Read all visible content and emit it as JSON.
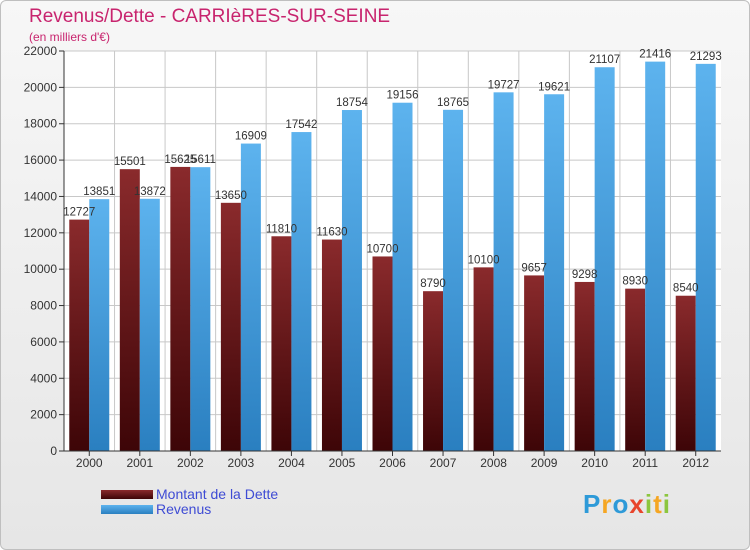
{
  "chart_data": {
    "type": "bar",
    "title": "Revenus/Dette - CARRIèRES-SUR-SEINE",
    "subtitle": "(en milliers d'€)",
    "categories": [
      "2000",
      "2001",
      "2002",
      "2003",
      "2004",
      "2005",
      "2006",
      "2007",
      "2008",
      "2009",
      "2010",
      "2011",
      "2012"
    ],
    "series": [
      {
        "name": "Montant de la Dette",
        "color": "#7a1a1c",
        "values": [
          12727,
          15501,
          15625,
          13650,
          11810,
          11630,
          10700,
          8790,
          10100,
          9657,
          9298,
          8930,
          8540
        ],
        "labels": [
          "12727",
          "15501",
          "15625",
          "13650",
          "11810",
          "11630",
          "10700",
          "8790",
          "10100",
          "9657",
          "9298",
          "8930",
          "8540"
        ]
      },
      {
        "name": "Revenus",
        "color": "#4aa3e2",
        "values": [
          13851,
          13872,
          15611,
          16909,
          17542,
          18754,
          19156,
          18765,
          19727,
          19621,
          21107,
          21416,
          21293
        ],
        "labels": [
          "13851",
          "13872",
          "15611",
          "16909",
          "17542",
          "18754",
          "19156",
          "18765",
          "19727",
          "19621",
          "21107",
          "21416",
          "21293"
        ]
      }
    ],
    "yticks": [
      0,
      2000,
      4000,
      6000,
      8000,
      10000,
      12000,
      14000,
      16000,
      18000,
      20000,
      22000
    ],
    "ylim": [
      0,
      22000
    ],
    "grid": true,
    "xlabel": "",
    "ylabel": "",
    "legend_position": "bottom-left"
  },
  "logo": {
    "letters": [
      "P",
      "r",
      "o",
      "x",
      "i",
      "t",
      "i"
    ],
    "colors": [
      "#2e9ad8",
      "#f5a623",
      "#2e9ad8",
      "#e8452c",
      "#8cc63f",
      "#f5a623",
      "#8cc63f"
    ]
  }
}
